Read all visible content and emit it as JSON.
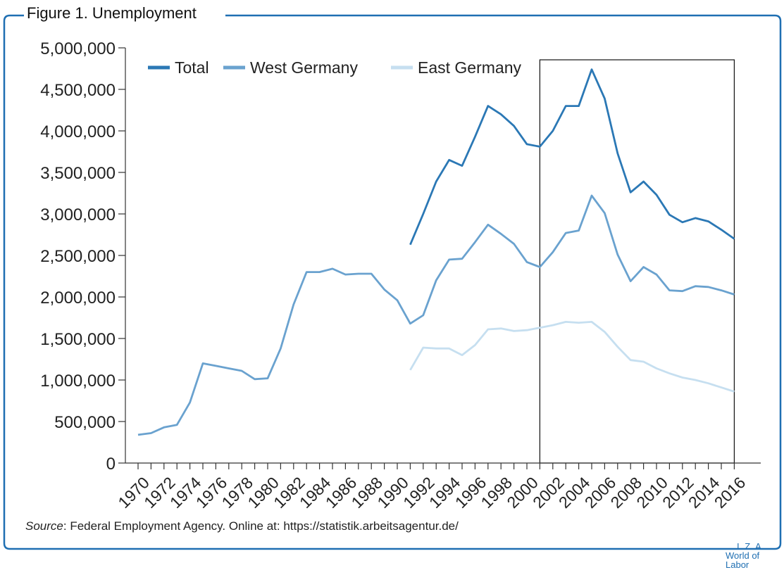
{
  "figure": {
    "title": "Figure 1. Unemployment",
    "source_label": "Source",
    "source_text": ": Federal Employment Agency. Online at: https://statistik.arbeitsagentur.de/",
    "brand_top": "I Z A",
    "brand_bottom": "World of Labor"
  },
  "colors": {
    "frame": "#1f6fb2",
    "total": "#2b78b5",
    "west": "#6aa2cf",
    "east": "#c6dff0",
    "axis": "#333333"
  },
  "chart_data": {
    "type": "line",
    "x": [
      1970,
      1971,
      1972,
      1973,
      1974,
      1975,
      1976,
      1977,
      1978,
      1979,
      1980,
      1981,
      1982,
      1983,
      1984,
      1985,
      1986,
      1987,
      1988,
      1989,
      1990,
      1991,
      1992,
      1993,
      1994,
      1995,
      1996,
      1997,
      1998,
      1999,
      2000,
      2001,
      2002,
      2003,
      2004,
      2005,
      2006,
      2007,
      2008,
      2009,
      2010,
      2011,
      2012,
      2013,
      2014,
      2015,
      2016
    ],
    "x_tick_labels": [
      "1970",
      "1972",
      "1974",
      "1976",
      "1978",
      "1980",
      "1982",
      "1984",
      "1986",
      "1988",
      "1990",
      "1992",
      "1994",
      "1996",
      "1998",
      "2000",
      "2002",
      "2004",
      "2006",
      "2008",
      "2010",
      "2012",
      "2014",
      "2016"
    ],
    "y_tick_labels": [
      "0",
      "500,000",
      "1,000,000",
      "1,500,000",
      "2,000,000",
      "2,500,000",
      "3,000,000",
      "3,500,000",
      "4,000,000",
      "4,500,000",
      "5,000,000"
    ],
    "ylim": [
      0,
      5000000
    ],
    "xlim": [
      1969,
      2016
    ],
    "highlight_range": [
      2001,
      2016
    ],
    "series": [
      {
        "name": "Total",
        "color": "#2b78b5",
        "values": [
          null,
          null,
          null,
          null,
          null,
          null,
          null,
          null,
          null,
          null,
          null,
          null,
          null,
          null,
          null,
          null,
          null,
          null,
          null,
          null,
          null,
          2630000,
          3000000,
          3390000,
          3650000,
          3580000,
          3930000,
          4300000,
          4200000,
          4060000,
          3840000,
          3810000,
          4000000,
          4300000,
          4300000,
          4740000,
          4390000,
          3730000,
          3260000,
          3390000,
          3230000,
          2990000,
          2900000,
          2950000,
          2910000,
          2810000,
          2700000
        ]
      },
      {
        "name": "West Germany",
        "color": "#6aa2cf",
        "values": [
          340000,
          360000,
          430000,
          460000,
          730000,
          1200000,
          1170000,
          1140000,
          1110000,
          1010000,
          1020000,
          1380000,
          1910000,
          2300000,
          2300000,
          2340000,
          2270000,
          2280000,
          2280000,
          2090000,
          1960000,
          1680000,
          1780000,
          2200000,
          2450000,
          2460000,
          2660000,
          2870000,
          2760000,
          2640000,
          2420000,
          2360000,
          2540000,
          2770000,
          2800000,
          3220000,
          3010000,
          2510000,
          2190000,
          2360000,
          2270000,
          2080000,
          2070000,
          2130000,
          2120000,
          2080000,
          2030000
        ]
      },
      {
        "name": "East Germany",
        "color": "#c6dff0",
        "values": [
          null,
          null,
          null,
          null,
          null,
          null,
          null,
          null,
          null,
          null,
          null,
          null,
          null,
          null,
          null,
          null,
          null,
          null,
          null,
          null,
          null,
          1120000,
          1390000,
          1380000,
          1380000,
          1300000,
          1420000,
          1610000,
          1620000,
          1590000,
          1600000,
          1630000,
          1660000,
          1700000,
          1690000,
          1700000,
          1580000,
          1400000,
          1240000,
          1220000,
          1140000,
          1080000,
          1030000,
          1000000,
          960000,
          910000,
          860000
        ]
      }
    ]
  }
}
